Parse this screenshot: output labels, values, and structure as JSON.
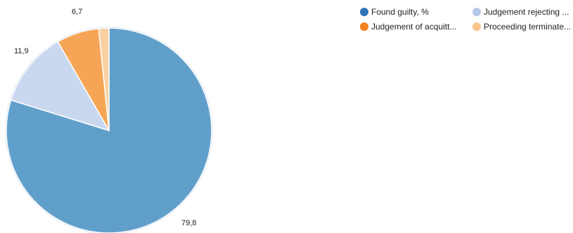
{
  "chart_data": {
    "type": "pie",
    "categories": [
      "Found guilty, %",
      "Judgement rejecting ...",
      "Judgement of acquitt...",
      "Proceeding terminate..."
    ],
    "values": [
      79.8,
      11.9,
      6.7,
      1.6
    ],
    "data_labels": [
      "79,8",
      "11,9",
      "6,7",
      ""
    ],
    "legend_colors": [
      "#2E75B6",
      "#B4C7E7",
      "#F4811F",
      "#F8C58E"
    ],
    "slice_colors": [
      "#619FCB",
      "#C9D8EF",
      "#F6A556",
      "#FAD1A2"
    ],
    "legend_placement": "top-right"
  }
}
